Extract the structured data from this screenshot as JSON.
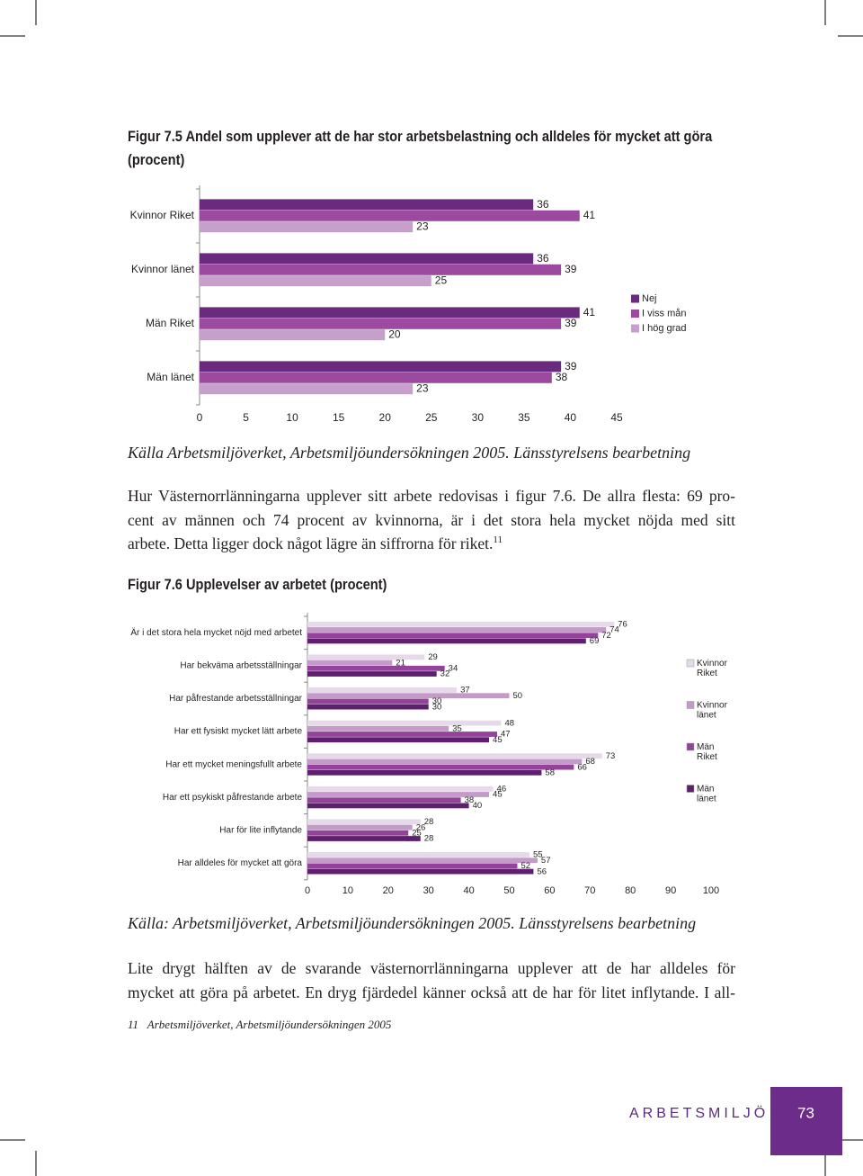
{
  "chart_data": [
    {
      "type": "hbar",
      "title": [
        "Figur 7.5 Andel som upplever att de har stor arbetsbelastning och alldeles för mycket att göra",
        "(procent)"
      ],
      "categories": [
        "Kvinnor Riket",
        "Kvinnor länet",
        "Män Riket",
        "Män länet"
      ],
      "series": [
        {
          "name": "Nej",
          "color": "#6a2a7e",
          "values": [
            36,
            36,
            41,
            39
          ]
        },
        {
          "name": "I viss mån",
          "color": "#9b4aa0",
          "values": [
            41,
            39,
            39,
            38
          ]
        },
        {
          "name": "I hög grad",
          "color": "#c79fcb",
          "values": [
            23,
            25,
            20,
            23
          ]
        }
      ],
      "xlim": [
        0,
        45
      ],
      "xticks": [
        0,
        5,
        10,
        15,
        20,
        25,
        30,
        35,
        40,
        45
      ],
      "legend": "right",
      "source": "Källa Arbetsmiljöverket, Arbetsmiljöundersökningen 2005. Länsstyrelsens bearbetning"
    },
    {
      "type": "hbar",
      "title": [
        "Figur 7.6 Upplevelser av arbetet (procent)"
      ],
      "categories": [
        "Är i det stora hela mycket nöjd med arbetet",
        "Har bekväma arbetsställningar",
        "Har påfrestande arbetsställningar",
        "Har ett fysiskt mycket lätt arbete",
        "Har ett mycket meningsfullt arbete",
        "Har ett psykiskt påfrestande arbete",
        "Har för lite inflytande",
        "Har alldeles för mycket att göra"
      ],
      "series": [
        {
          "name": "Kvinnor Riket",
          "color": "#e6d9ea",
          "values": [
            76,
            29,
            37,
            48,
            73,
            46,
            28,
            55
          ]
        },
        {
          "name": "Kvinnor länet",
          "color": "#c49bc8",
          "values": [
            74,
            21,
            50,
            35,
            68,
            45,
            26,
            57
          ]
        },
        {
          "name": "Män Riket",
          "color": "#93449a",
          "values": [
            72,
            34,
            30,
            47,
            66,
            38,
            25,
            52
          ]
        },
        {
          "name": "Män länet",
          "color": "#5e1f6e",
          "values": [
            69,
            32,
            30,
            45,
            58,
            40,
            28,
            56
          ]
        }
      ],
      "xlim": [
        0,
        100
      ],
      "xticks": [
        0,
        10,
        20,
        30,
        40,
        50,
        60,
        70,
        80,
        90,
        100
      ],
      "legend": "right",
      "source": "Källa: Arbetsmiljöverket, Arbetsmiljöundersökningen 2005. Länsstyrelsens bearbetning"
    }
  ],
  "document": {
    "paragraph_1": [
      "Hur Västernorrlänningarna upplever sitt arbete redovisas i figur 7.6. De allra flesta: 69 pro-",
      "cent av männen och 74 procent av kvinnorna, är i det stora hela mycket nöjda med sitt",
      "arbete. Detta ligger dock något lägre än siffrorna för riket."
    ],
    "footnote_ref": "11",
    "paragraph_2": [
      "Lite drygt hälften av de svarande västernorrlänningarna upplever att de har alldeles för",
      "mycket att göra på arbetet. En dryg fjärdedel känner också att de har för litet inflytande. I all-"
    ],
    "footnote": {
      "number": "11",
      "text": "Arbetsmiljöverket, Arbetsmiljöundersökningen 2005"
    },
    "footer": {
      "section": "ARBETSMILJÖ",
      "page": "73"
    }
  }
}
